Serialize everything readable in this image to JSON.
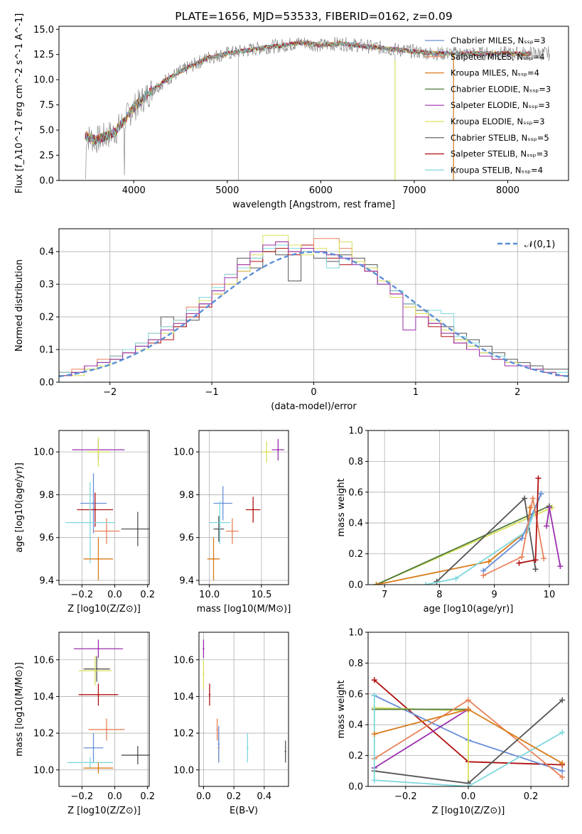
{
  "chart_data": [
    {
      "type": "line",
      "title": "PLATE=1656, MJD=53533, FIBERID=0162, z=0.09",
      "xlabel": "wavelength [Angstrom, rest frame]",
      "ylabel": "Flux [f_λ10^-17 erg cm^-2 s^-1 A^-1]",
      "xlim": [
        3200,
        8650
      ],
      "ylim": [
        0,
        15.3
      ],
      "xticks": [
        4000,
        5000,
        6000,
        7000,
        8000
      ],
      "yticks": [
        0.0,
        2.5,
        5.0,
        7.5,
        10.0,
        12.5,
        15.0
      ],
      "legend_position": "right",
      "series": [
        {
          "name": "Chabrier MILES, N_SSP=3",
          "color": "#6a8fd8"
        },
        {
          "name": "Salpeter MILES, N_SSP=4",
          "color": "#e8825a"
        },
        {
          "name": "Kroupa MILES, N_SSP=4",
          "color": "#d97b1a"
        },
        {
          "name": "Chabrier ELODIE, N_SSP=3",
          "color": "#4e7a3a"
        },
        {
          "name": "Salpeter ELODIE, N_SSP=3",
          "color": "#9b2fae"
        },
        {
          "name": "Kroupa ELODIE, N_SSP=3",
          "color": "#d9e05a"
        },
        {
          "name": "Chabrier STELIB, N_SSP=5",
          "color": "#555555"
        },
        {
          "name": "Salpeter STELIB, N_SSP=3",
          "color": "#b01010"
        },
        {
          "name": "Kroupa STELIB, N_SSP=4",
          "color": "#7fd8dc"
        }
      ],
      "continuum_points": {
        "x": [
          3480,
          3600,
          3800,
          4000,
          4200,
          4400,
          4600,
          4800,
          5000,
          5200,
          5400,
          5600,
          5800,
          6000,
          6200,
          6400,
          6600,
          6800,
          7000,
          7200,
          7400
        ],
        "y": [
          4.4,
          4.0,
          4.8,
          7.2,
          9.0,
          10.3,
          11.3,
          12.2,
          12.6,
          12.9,
          13.2,
          13.4,
          13.7,
          13.4,
          13.6,
          13.4,
          13.2,
          13.0,
          12.8,
          12.6,
          12.6
        ]
      }
    },
    {
      "type": "line",
      "xlabel": "(data-model)/error",
      "ylabel": "Normed distribution",
      "xlim": [
        -2.5,
        2.5
      ],
      "ylim": [
        0,
        0.47
      ],
      "xticks": [
        -2,
        -1,
        0,
        1,
        2
      ],
      "yticks": [
        0.0,
        0.1,
        0.2,
        0.3,
        0.4
      ],
      "grid": true,
      "legend_position": "top-right",
      "reference": {
        "name": "𝒩(0,1)",
        "color": "#5a8fd6"
      },
      "histograms": [
        {
          "color": "#555555",
          "values": [
            0.02,
            0.03,
            0.04,
            0.05,
            0.07,
            0.09,
            0.11,
            0.13,
            0.2,
            0.17,
            0.19,
            0.24,
            0.28,
            0.3,
            0.38,
            0.35,
            0.4,
            0.39,
            0.31,
            0.4,
            0.38,
            0.37,
            0.39,
            0.38,
            0.36,
            0.3,
            0.28,
            0.24,
            0.22,
            0.18,
            0.17,
            0.15,
            0.13,
            0.11,
            0.09,
            0.07,
            0.06,
            0.05,
            0.04,
            0.04
          ]
        },
        {
          "color": "#b01010",
          "values": [
            0.03,
            0.03,
            0.05,
            0.06,
            0.08,
            0.09,
            0.1,
            0.12,
            0.13,
            0.17,
            0.2,
            0.23,
            0.27,
            0.3,
            0.34,
            0.37,
            0.4,
            0.41,
            0.39,
            0.42,
            0.4,
            0.38,
            0.36,
            0.37,
            0.34,
            0.31,
            0.27,
            0.24,
            0.21,
            0.17,
            0.14,
            0.12,
            0.1,
            0.09,
            0.07,
            0.06,
            0.05,
            0.04,
            0.03,
            0.02
          ]
        },
        {
          "color": "#e8825a",
          "values": [
            0.02,
            0.04,
            0.05,
            0.07,
            0.08,
            0.1,
            0.12,
            0.15,
            0.17,
            0.19,
            0.23,
            0.26,
            0.3,
            0.33,
            0.36,
            0.38,
            0.42,
            0.43,
            0.4,
            0.41,
            0.44,
            0.44,
            0.41,
            0.37,
            0.34,
            0.3,
            0.27,
            0.23,
            0.2,
            0.18,
            0.15,
            0.13,
            0.11,
            0.09,
            0.07,
            0.06,
            0.05,
            0.04,
            0.03,
            0.02
          ]
        },
        {
          "color": "#7fd8dc",
          "values": [
            0.03,
            0.03,
            0.04,
            0.06,
            0.08,
            0.1,
            0.12,
            0.15,
            0.17,
            0.19,
            0.22,
            0.26,
            0.29,
            0.33,
            0.35,
            0.38,
            0.41,
            0.42,
            0.41,
            0.4,
            0.4,
            0.35,
            0.38,
            0.36,
            0.35,
            0.3,
            0.28,
            0.24,
            0.21,
            0.22,
            0.21,
            0.14,
            0.12,
            0.09,
            0.08,
            0.06,
            0.05,
            0.04,
            0.03,
            0.03
          ]
        },
        {
          "color": "#d9e05a",
          "values": [
            0.02,
            0.02,
            0.04,
            0.05,
            0.07,
            0.09,
            0.1,
            0.13,
            0.15,
            0.18,
            0.21,
            0.25,
            0.27,
            0.3,
            0.34,
            0.39,
            0.45,
            0.45,
            0.42,
            0.39,
            0.41,
            0.39,
            0.43,
            0.37,
            0.35,
            0.31,
            0.26,
            0.23,
            0.21,
            0.19,
            0.16,
            0.13,
            0.11,
            0.09,
            0.07,
            0.06,
            0.05,
            0.04,
            0.03,
            0.02
          ]
        },
        {
          "color": "#9b2fae",
          "values": [
            0.02,
            0.03,
            0.05,
            0.06,
            0.07,
            0.09,
            0.11,
            0.13,
            0.16,
            0.18,
            0.21,
            0.24,
            0.28,
            0.32,
            0.36,
            0.4,
            0.42,
            0.43,
            0.4,
            0.41,
            0.4,
            0.39,
            0.38,
            0.36,
            0.34,
            0.3,
            0.27,
            0.16,
            0.2,
            0.18,
            0.15,
            0.12,
            0.1,
            0.08,
            0.07,
            0.05,
            0.05,
            0.04,
            0.03,
            0.02
          ]
        }
      ]
    },
    {
      "type": "scatter",
      "xlabel": "Z [log10(Z/Z⊙)]",
      "ylabel": "age  [log10(age/yr)]",
      "xlim": [
        -0.34,
        0.21
      ],
      "ylim": [
        9.38,
        10.1
      ],
      "xticks": [
        -0.2,
        0.0,
        0.2
      ],
      "yticks": [
        9.4,
        9.6,
        9.8,
        10.0
      ],
      "grid": true,
      "points": [
        {
          "x": -0.1,
          "y": 10.01,
          "xerr": 0.16,
          "yerr": 0.05,
          "color": "#9b2fae"
        },
        {
          "x": -0.1,
          "y": 10.0,
          "xerr": 0.07,
          "yerr": 0.07,
          "color": "#d9e05a"
        },
        {
          "x": -0.13,
          "y": 9.76,
          "xerr": 0.08,
          "yerr": 0.14,
          "color": "#6a8fd8"
        },
        {
          "x": -0.12,
          "y": 9.73,
          "xerr": 0.11,
          "yerr": 0.08,
          "color": "#b01010"
        },
        {
          "x": 0.14,
          "y": 9.64,
          "xerr": 0.1,
          "yerr": 0.08,
          "color": "#555555"
        },
        {
          "x": -0.05,
          "y": 9.63,
          "xerr": 0.08,
          "yerr": 0.06,
          "color": "#e8825a"
        },
        {
          "x": -0.15,
          "y": 9.67,
          "xerr": 0.15,
          "yerr": 0.19,
          "color": "#7fd8dc"
        },
        {
          "x": -0.1,
          "y": 9.5,
          "xerr": 0.09,
          "yerr": 0.1,
          "color": "#d97b1a"
        }
      ]
    },
    {
      "type": "scatter",
      "xlabel": "mass [log10(M/M⊙)]",
      "ylabel": "",
      "xlim": [
        9.9,
        10.76
      ],
      "ylim": [
        9.38,
        10.1
      ],
      "xticks": [
        10.0,
        10.5
      ],
      "yticks": [
        9.4,
        9.6,
        9.8,
        10.0
      ],
      "grid": true,
      "points": [
        {
          "x": 10.66,
          "y": 10.01,
          "xerr": 0.06,
          "yerr": 0.05,
          "color": "#9b2fae"
        },
        {
          "x": 10.55,
          "y": 10.0,
          "xerr": 0.05,
          "yerr": 0.05,
          "color": "#d9e05a"
        },
        {
          "x": 10.13,
          "y": 9.76,
          "xerr": 0.09,
          "yerr": 0.08,
          "color": "#6a8fd8"
        },
        {
          "x": 10.42,
          "y": 9.73,
          "xerr": 0.07,
          "yerr": 0.06,
          "color": "#b01010"
        },
        {
          "x": 10.09,
          "y": 9.64,
          "xerr": 0.05,
          "yerr": 0.06,
          "color": "#555555"
        },
        {
          "x": 10.22,
          "y": 9.63,
          "xerr": 0.06,
          "yerr": 0.06,
          "color": "#e8825a"
        },
        {
          "x": 10.04,
          "y": 9.5,
          "xerr": 0.06,
          "yerr": 0.1,
          "color": "#d97b1a"
        },
        {
          "x": 10.1,
          "y": 9.67,
          "xerr": 0.1,
          "yerr": 0.1,
          "color": "#7fd8dc"
        }
      ]
    },
    {
      "type": "line",
      "xlabel": "age  [log10(age/yr)]",
      "ylabel": "mass weight",
      "xlim": [
        6.7,
        10.35
      ],
      "ylim": [
        0,
        1.0
      ],
      "xticks": [
        7,
        8,
        9,
        10
      ],
      "yticks": [
        0.0,
        0.2,
        0.4,
        0.6,
        0.8,
        1.0
      ],
      "grid": true,
      "series": [
        {
          "color": "#d9e05a",
          "x": [
            6.85,
            10.05
          ],
          "y": [
            0.0,
            0.5
          ]
        },
        {
          "color": "#4e7a3a",
          "x": [
            6.85,
            10.0
          ],
          "y": [
            0.0,
            0.51
          ]
        },
        {
          "color": "#d97b1a",
          "x": [
            6.85,
            8.9,
            9.6,
            9.65
          ],
          "y": [
            0.0,
            0.15,
            0.35,
            0.5
          ]
        },
        {
          "color": "#555555",
          "x": [
            7.95,
            9.55,
            9.75
          ],
          "y": [
            0.02,
            0.56,
            0.1
          ]
        },
        {
          "color": "#7fd8dc",
          "x": [
            7.75,
            8.3,
            9.6,
            9.85
          ],
          "y": [
            0.0,
            0.04,
            0.35,
            0.59
          ]
        },
        {
          "color": "#6a8fd8",
          "x": [
            8.8,
            9.5,
            9.85
          ],
          "y": [
            0.09,
            0.3,
            0.59
          ]
        },
        {
          "color": "#e8825a",
          "x": [
            8.8,
            9.5,
            9.7,
            9.9
          ],
          "y": [
            0.06,
            0.18,
            0.56,
            0.17
          ]
        },
        {
          "color": "#b01010",
          "x": [
            9.45,
            9.75,
            9.8
          ],
          "y": [
            0.14,
            0.16,
            0.69
          ]
        },
        {
          "color": "#9b2fae",
          "x": [
            9.95,
            10.0,
            10.2
          ],
          "y": [
            0.38,
            0.5,
            0.12
          ]
        }
      ]
    },
    {
      "type": "scatter",
      "xlabel": "Z [log10(Z/Z⊙)]",
      "ylabel": "mass [log10(M/M⊙)]",
      "xlim": [
        -0.34,
        0.21
      ],
      "ylim": [
        9.91,
        10.75
      ],
      "xticks": [
        -0.2,
        0.0,
        0.2
      ],
      "yticks": [
        10.0,
        10.2,
        10.4,
        10.6
      ],
      "grid": true,
      "points": [
        {
          "x": -0.1,
          "y": 10.66,
          "xerr": 0.15,
          "yerr": 0.05,
          "color": "#9b2fae"
        },
        {
          "x": -0.11,
          "y": 10.55,
          "xerr": 0.08,
          "yerr": 0.07,
          "color": "#555555"
        },
        {
          "x": -0.12,
          "y": 10.54,
          "xerr": 0.1,
          "yerr": 0.08,
          "color": "#d9e05a"
        },
        {
          "x": -0.1,
          "y": 10.41,
          "xerr": 0.12,
          "yerr": 0.06,
          "color": "#b01010"
        },
        {
          "x": -0.05,
          "y": 10.22,
          "xerr": 0.11,
          "yerr": 0.06,
          "color": "#e8825a"
        },
        {
          "x": -0.13,
          "y": 10.12,
          "xerr": 0.06,
          "yerr": 0.08,
          "color": "#6a8fd8"
        },
        {
          "x": 0.14,
          "y": 10.08,
          "xerr": 0.1,
          "yerr": 0.05,
          "color": "#555555"
        },
        {
          "x": -0.15,
          "y": 10.04,
          "xerr": 0.14,
          "yerr": 0.03,
          "color": "#7fd8dc"
        },
        {
          "x": -0.1,
          "y": 10.01,
          "xerr": 0.09,
          "yerr": 0.03,
          "color": "#d97b1a"
        }
      ]
    },
    {
      "type": "scatter",
      "xlabel": "E(B-V)",
      "ylabel": "",
      "xlim": [
        -0.03,
        0.56
      ],
      "ylim": [
        9.91,
        10.75
      ],
      "xticks": [
        0.0,
        0.2,
        0.4
      ],
      "yticks": [
        10.0,
        10.2,
        10.4,
        10.6
      ],
      "grid": true,
      "points": [
        {
          "x": 0.0,
          "y": 10.66,
          "yerr": 0.05,
          "color": "#9b2fae"
        },
        {
          "x": 0.0,
          "y": 10.52,
          "yerr": 0.08,
          "color": "#d9e05a"
        },
        {
          "x": 0.04,
          "y": 10.41,
          "yerr": 0.06,
          "color": "#b01010"
        },
        {
          "x": 0.09,
          "y": 10.22,
          "yerr": 0.06,
          "color": "#e8825a"
        },
        {
          "x": 0.1,
          "y": 10.12,
          "yerr": 0.08,
          "color": "#d97b1a"
        },
        {
          "x": 0.1,
          "y": 10.14,
          "yerr": 0.1,
          "color": "#6a8fd8"
        },
        {
          "x": 0.29,
          "y": 10.12,
          "yerr": 0.08,
          "color": "#7fd8dc"
        },
        {
          "x": 0.54,
          "y": 10.1,
          "yerr": 0.06,
          "color": "#555555"
        }
      ]
    },
    {
      "type": "line",
      "xlabel": "Z [log10(Z/Z⊙)]",
      "ylabel": "mass weight",
      "xlim": [
        -0.32,
        0.32
      ],
      "ylim": [
        0,
        1.0
      ],
      "xticks": [
        -0.2,
        0.0,
        0.2
      ],
      "yticks": [
        0.0,
        0.2,
        0.4,
        0.6,
        0.8,
        1.0
      ],
      "grid": true,
      "series": [
        {
          "color": "#b01010",
          "x": [
            -0.3,
            0.0,
            0.3
          ],
          "y": [
            0.69,
            0.16,
            0.14
          ]
        },
        {
          "color": "#6a8fd8",
          "x": [
            -0.3,
            0.0,
            0.3
          ],
          "y": [
            0.59,
            0.3,
            0.1
          ]
        },
        {
          "color": "#d9e05a",
          "x": [
            -0.3,
            0.0,
            0.0
          ],
          "y": [
            0.51,
            0.49,
            0.0
          ]
        },
        {
          "color": "#4e7a3a",
          "x": [
            -0.3,
            0.0
          ],
          "y": [
            0.5,
            0.5
          ]
        },
        {
          "color": "#e8825a",
          "x": [
            -0.3,
            0.0,
            0.3
          ],
          "y": [
            0.18,
            0.56,
            0.06
          ]
        },
        {
          "color": "#9b2fae",
          "x": [
            -0.3,
            0.0
          ],
          "y": [
            0.12,
            0.5
          ]
        },
        {
          "color": "#555555",
          "x": [
            -0.3,
            0.0,
            0.3
          ],
          "y": [
            0.1,
            0.02,
            0.56
          ]
        },
        {
          "color": "#7fd8dc",
          "x": [
            -0.3,
            -0.3,
            0.0,
            0.3
          ],
          "y": [
            0.59,
            0.04,
            0.0,
            0.35
          ]
        },
        {
          "color": "#d97b1a",
          "x": [
            -0.3,
            0.0,
            0.3
          ],
          "y": [
            0.34,
            0.5,
            0.15
          ]
        }
      ]
    }
  ]
}
